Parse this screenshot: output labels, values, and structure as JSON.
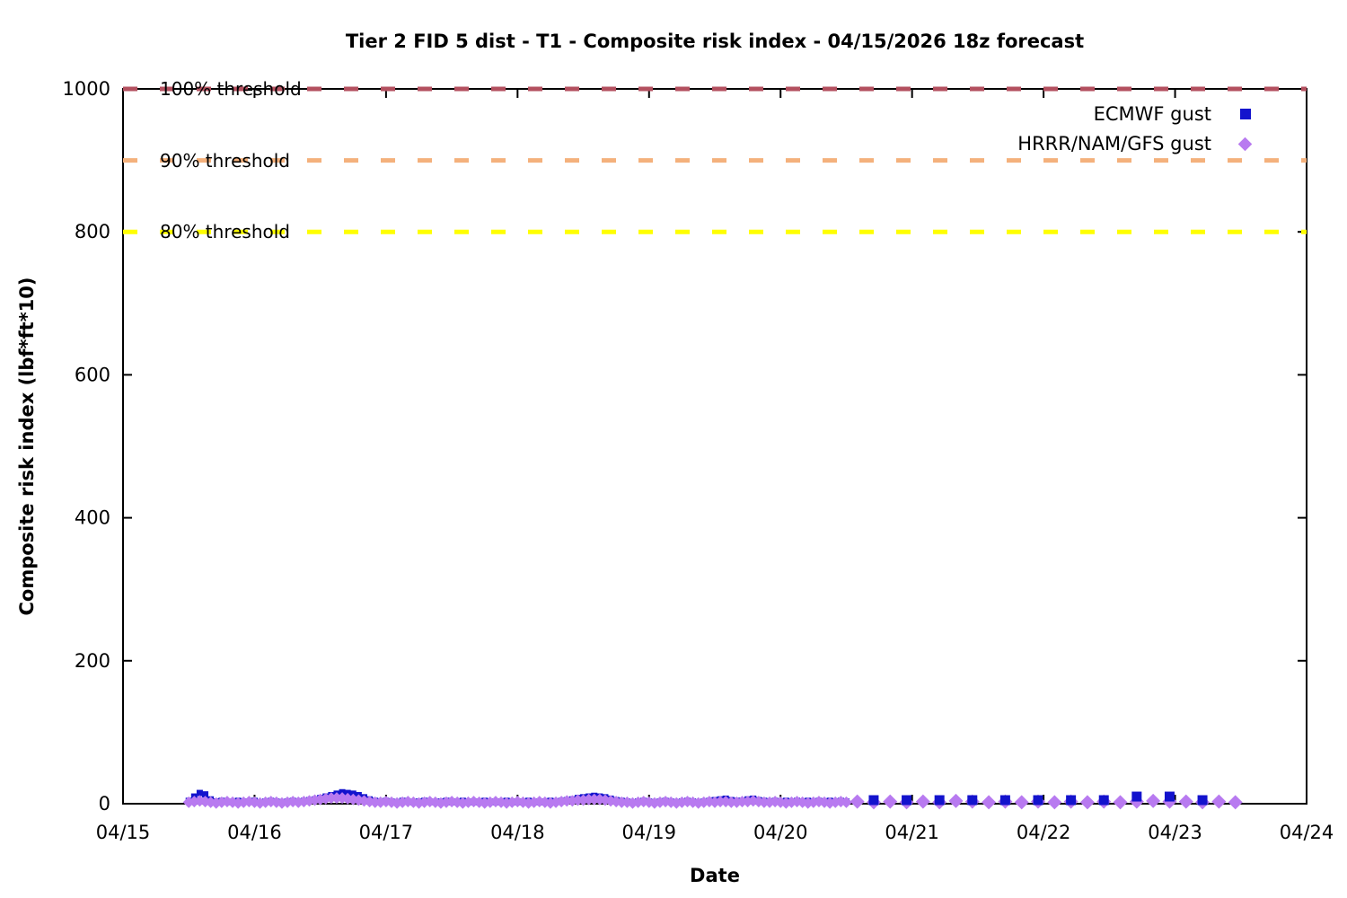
{
  "chart_data": {
    "type": "scatter",
    "title": "Tier 2 FID 5 dist - T1 - Composite risk index - 04/15/2026 18z forecast",
    "xlabel": "Date",
    "ylabel": "Composite risk index (lbf*ft*10)",
    "x_unit": "days since 04/15",
    "xlim": [
      0,
      9
    ],
    "ylim": [
      0,
      1000
    ],
    "xtick_labels": [
      "04/15",
      "04/16",
      "04/17",
      "04/18",
      "04/19",
      "04/20",
      "04/21",
      "04/22",
      "04/23",
      "04/24"
    ],
    "ytick_values": [
      0,
      200,
      400,
      600,
      800,
      1000
    ],
    "grid": false,
    "legend_position": "top-right-inside",
    "axis_color": "#000000",
    "thresholds": [
      {
        "label": "100% threshold",
        "value": 1000,
        "color": "#b3505f"
      },
      {
        "label": "90% threshold",
        "value": 900,
        "color": "#f4b17c"
      },
      {
        "label": "80% threshold",
        "value": 800,
        "color": "#ffff00"
      }
    ],
    "series": [
      {
        "name": "ECMWF gust",
        "marker": "square",
        "color": "#1313cd",
        "segments": [
          {
            "layer": 1,
            "marker_size": 7,
            "start_day": 0.5,
            "step_hours": 1,
            "values": [
              4,
              10,
              15,
              13,
              6,
              3,
              4,
              3,
              2,
              4,
              3,
              3,
              4,
              2,
              3,
              4,
              3,
              2,
              3,
              4,
              3,
              4,
              5,
              6,
              8,
              10,
              12,
              14,
              16,
              15,
              14,
              12,
              9,
              6,
              4,
              3,
              4,
              3,
              2,
              4,
              3,
              2,
              3,
              4,
              3,
              2,
              3,
              4,
              2,
              3,
              4,
              3,
              2,
              3,
              4,
              3,
              2,
              3,
              4,
              3,
              2,
              3,
              4,
              3,
              2,
              3,
              4,
              3,
              4,
              5,
              6,
              8,
              9,
              10,
              11,
              10,
              9,
              7,
              5,
              4,
              3,
              2,
              3,
              4,
              3,
              2,
              3,
              4,
              3,
              2,
              3,
              4,
              3,
              2,
              3,
              4,
              5,
              6,
              7,
              5,
              4,
              4,
              6,
              7,
              5,
              4,
              3,
              4,
              3,
              4,
              3,
              4,
              3,
              4,
              3,
              4,
              3,
              4,
              3,
              4,
              3
            ]
          },
          {
            "layer": 4,
            "marker_size": 11,
            "start_day": 5.708333,
            "step_hours": 6,
            "values": [
              5,
              5,
              5,
              5,
              5,
              5,
              5,
              5,
              10,
              10,
              5
            ]
          }
        ]
      },
      {
        "name": "HRRR/NAM/GFS gust",
        "marker": "diamond",
        "color": "#b87af0",
        "segments": [
          {
            "layer": 2,
            "marker_size": 10,
            "start_day": 0.5,
            "step_hours": 1,
            "values": [
              2,
              3,
              4,
              3,
              2,
              1,
              2,
              3,
              2,
              1,
              2,
              3,
              2,
              1,
              2,
              3,
              2,
              1,
              2,
              3,
              2,
              3,
              4,
              5,
              6,
              7,
              8,
              8,
              8,
              7,
              6,
              5,
              4,
              3,
              2,
              2,
              3,
              2,
              1,
              2,
              3,
              2,
              1,
              2,
              3,
              2,
              1,
              2,
              3,
              2,
              1,
              2,
              3,
              2,
              1,
              2,
              3,
              2,
              1,
              2,
              3,
              2,
              1,
              2,
              3,
              2,
              1,
              2,
              3,
              4,
              4,
              5,
              5,
              6,
              6,
              6,
              5,
              4,
              3,
              2,
              2,
              1,
              2,
              3,
              2,
              1,
              2,
              3,
              2,
              1,
              2,
              3,
              2,
              1,
              2,
              3,
              2,
              3,
              3,
              2,
              2,
              3,
              3,
              4,
              3,
              2,
              2,
              3,
              2,
              1,
              2,
              3,
              2,
              1,
              2,
              3,
              2,
              1,
              2,
              3,
              2
            ]
          },
          {
            "layer": 3,
            "marker_size": 13,
            "start_day": 5.583333,
            "step_hours": 3,
            "values": [
              3,
              2,
              3,
              2,
              3,
              2,
              4,
              3,
              2,
              3,
              2,
              3,
              2,
              3,
              2,
              3,
              2,
              3,
              4,
              3,
              3,
              2,
              3,
              2
            ]
          }
        ]
      }
    ]
  }
}
